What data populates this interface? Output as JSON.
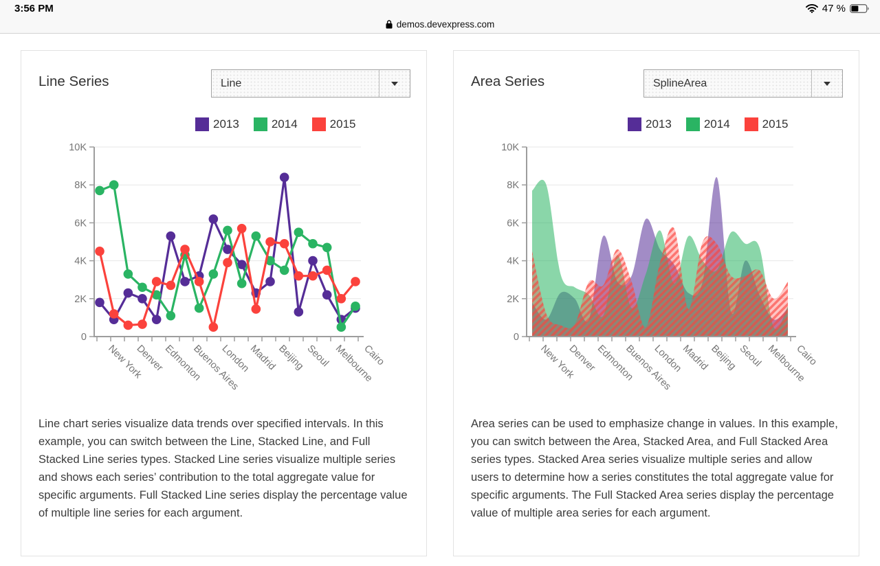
{
  "status_bar": {
    "time": "3:56 PM",
    "battery_label": "47 %"
  },
  "browser": {
    "url": "demos.devexpress.com"
  },
  "legend": [
    {
      "label": "2013",
      "color": "#552d97"
    },
    {
      "label": "2014",
      "color": "#2ab463"
    },
    {
      "label": "2015",
      "color": "#fb423c"
    }
  ],
  "panels": [
    {
      "title": "Line Series",
      "dropdown_value": "Line",
      "description": "Line chart series visualize data trends over specified intervals. In this example, you can switch between the Line, Stacked Line, and Full Stacked Line series types. Stacked Line series visualize multiple series and shows each series’ contribution to the total aggregate value for specific arguments. Full Stacked Line series display the percentage value of multiple line series for each argument."
    },
    {
      "title": "Area Series",
      "dropdown_value": "SplineArea",
      "description": "Area series can be used to emphasize change in values. In this example, you can switch between the Area, Stacked Area, and Full Stacked Area series types. Stacked Area series visualize multiple series and allow users to determine how a series constitutes the total aggregate value for specific arguments. The Full Stacked Area series display the percentage value of multiple area series for each argument."
    }
  ],
  "chart_data": [
    {
      "type": "line",
      "title": "Line Series",
      "categories": [
        "New York",
        "Denver",
        "Edmonton",
        "Buenos Aires",
        "London",
        "Madrid",
        "Beijing",
        "Seoul",
        "Melbourne",
        "Cairo"
      ],
      "points_per_category": 2,
      "y_unit": "K",
      "ylim": [
        0,
        10000
      ],
      "y_tick_labels": [
        "0",
        "2K",
        "4K",
        "6K",
        "8K",
        "10K"
      ],
      "grid": true,
      "legend_position": "top",
      "series": [
        {
          "name": "2013",
          "color": "#552d97",
          "values": [
            1.8,
            0.9,
            2.3,
            2.0,
            0.9,
            5.3,
            2.9,
            3.2,
            6.2,
            4.6,
            3.8,
            2.3,
            2.9,
            8.4,
            1.3,
            4.0,
            2.2,
            0.9,
            1.5
          ]
        },
        {
          "name": "2014",
          "color": "#2ab463",
          "values": [
            7.7,
            8.0,
            3.3,
            2.6,
            2.2,
            1.1,
            4.3,
            1.5,
            3.3,
            5.6,
            2.8,
            5.3,
            4.0,
            3.5,
            5.5,
            4.9,
            4.7,
            0.5,
            1.6
          ]
        },
        {
          "name": "2015",
          "color": "#fb423c",
          "values": [
            4.5,
            1.2,
            0.6,
            0.65,
            2.9,
            2.7,
            4.6,
            2.9,
            0.5,
            3.9,
            5.7,
            1.45,
            5.0,
            4.9,
            3.2,
            3.2,
            3.5,
            2.0,
            2.9
          ]
        }
      ]
    },
    {
      "type": "splineArea",
      "title": "Area Series",
      "categories": [
        "New York",
        "Denver",
        "Edmonton",
        "Buenos Aires",
        "London",
        "Madrid",
        "Beijing",
        "Seoul",
        "Melbourne",
        "Cairo"
      ],
      "points_per_category": 2,
      "y_unit": "K",
      "ylim": [
        0,
        10000
      ],
      "y_tick_labels": [
        "0",
        "2K",
        "4K",
        "6K",
        "8K",
        "10K"
      ],
      "grid": true,
      "legend_position": "top",
      "hatched_series": "2015",
      "series": [
        {
          "name": "2013",
          "color": "#552d97",
          "values": [
            1.8,
            0.9,
            2.3,
            2.0,
            0.9,
            5.3,
            2.9,
            3.2,
            6.2,
            4.6,
            3.8,
            2.3,
            2.9,
            8.4,
            1.3,
            4.0,
            2.2,
            0.9,
            1.5
          ]
        },
        {
          "name": "2014",
          "color": "#2ab463",
          "values": [
            7.7,
            8.0,
            3.3,
            2.6,
            2.2,
            1.1,
            4.3,
            1.5,
            3.3,
            5.6,
            2.8,
            5.3,
            4.0,
            3.5,
            5.5,
            4.9,
            4.7,
            0.5,
            1.6
          ]
        },
        {
          "name": "2015",
          "color": "#fb423c",
          "values": [
            4.5,
            1.2,
            0.6,
            0.65,
            2.9,
            2.7,
            4.6,
            2.9,
            0.5,
            3.9,
            5.7,
            1.45,
            5.0,
            4.9,
            3.2,
            3.2,
            3.5,
            2.0,
            2.9
          ]
        }
      ]
    }
  ]
}
